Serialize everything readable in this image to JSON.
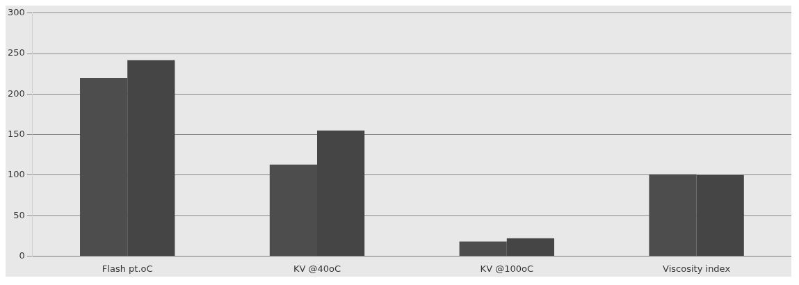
{
  "chart_data": {
    "type": "bar",
    "categories": [
      "Flash pt.oC",
      "KV @40oC",
      "KV @100oC",
      "Viscosity index"
    ],
    "series": [
      {
        "color": "#4d4d4d",
        "values": [
          220,
          113,
          18,
          101
        ]
      },
      {
        "color": "#454545",
        "values": [
          242,
          155,
          22,
          100
        ]
      }
    ],
    "ylim": [
      0,
      300
    ],
    "yticks": [
      0,
      50,
      100,
      150,
      200,
      250,
      300
    ],
    "grid": "y",
    "legend": false
  }
}
